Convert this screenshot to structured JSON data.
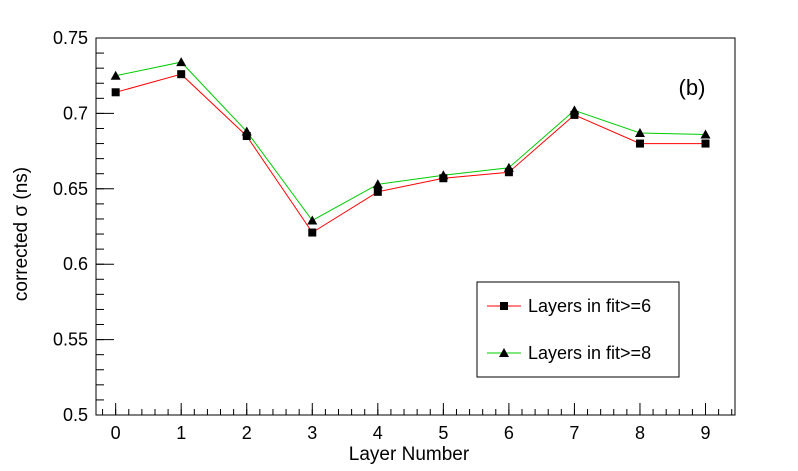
{
  "chart_data": {
    "type": "line",
    "title": "",
    "panel_label": "(b)",
    "xlabel": "Layer Number",
    "ylabel": "corrected σ (ns)",
    "xlim": [
      -0.3,
      9.45
    ],
    "ylim": [
      0.5,
      0.75
    ],
    "x_ticks": [
      0,
      1,
      2,
      3,
      4,
      5,
      6,
      7,
      8,
      9
    ],
    "x_tick_labels": [
      "0",
      "1",
      "2",
      "3",
      "4",
      "5",
      "6",
      "7",
      "8",
      "9"
    ],
    "y_ticks": [
      0.5,
      0.55,
      0.6,
      0.65,
      0.7,
      0.75
    ],
    "y_tick_labels": [
      "0.5",
      "0.55",
      "0.6",
      "0.65",
      "0.7",
      "0.75"
    ],
    "grid": false,
    "legend_position": "bottom-right",
    "x": [
      0,
      1,
      2,
      3,
      4,
      5,
      6,
      7,
      8,
      9
    ],
    "series": [
      {
        "name": "Layers in fit>=6",
        "line_color": "#ff0000",
        "marker": "square",
        "values": [
          0.714,
          0.726,
          0.685,
          0.621,
          0.648,
          0.657,
          0.661,
          0.699,
          0.68,
          0.68
        ]
      },
      {
        "name": "Layers in fit>=8",
        "line_color": "#00cc00",
        "marker": "triangle",
        "values": [
          0.725,
          0.734,
          0.688,
          0.629,
          0.653,
          0.659,
          0.664,
          0.702,
          0.687,
          0.686
        ]
      }
    ]
  }
}
